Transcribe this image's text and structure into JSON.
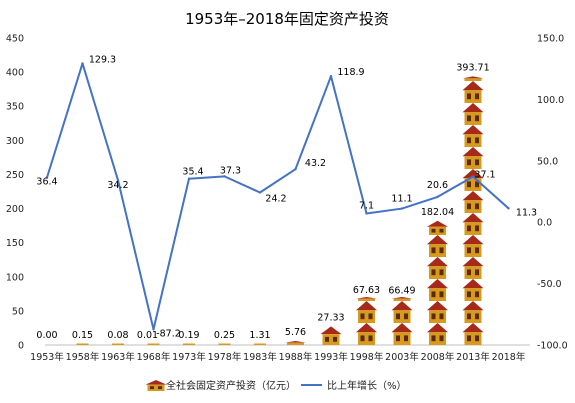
{
  "chart_data": {
    "type": "combo-pictograph-line",
    "title": "1953年–2018年固定资产投资",
    "categories": [
      "1953年",
      "1958年",
      "1963年",
      "1968年",
      "1973年",
      "1978年",
      "1983年",
      "1988年",
      "1993年",
      "1998年",
      "2003年",
      "2008年",
      "2013年",
      "2018年"
    ],
    "series": [
      {
        "name": "全社会固定资产投资（亿元）",
        "type": "pictograph",
        "axis": "left",
        "values": [
          0.0,
          0.15,
          0.08,
          0.01,
          0.19,
          0.25,
          1.31,
          5.76,
          27.33,
          67.63,
          66.49,
          182.04,
          393.71,
          null
        ],
        "labels": [
          "0.00",
          "0.15",
          "0.08",
          "0.01",
          "0.19",
          "0.25",
          "1.31",
          "5.76",
          "27.33",
          "67.63",
          "66.49",
          "182.04",
          "393.71",
          ""
        ]
      },
      {
        "name": "比上年增长（%）",
        "type": "line",
        "axis": "right",
        "color": "#4472c4",
        "values": [
          36.4,
          129.3,
          34.2,
          -87.2,
          35.4,
          37.3,
          24.2,
          43.2,
          118.9,
          7.1,
          11.1,
          20.6,
          37.1,
          11.3
        ],
        "labels": [
          "36.4",
          "129.3",
          "34.2",
          "-87.2",
          "35.4",
          "37.3",
          "24.2",
          "43.2",
          "118.9",
          "7.1",
          "11.1",
          "20.6",
          "37.1",
          "11.3"
        ]
      }
    ],
    "y_left": {
      "min": 0,
      "max": 450,
      "ticks": [
        "0",
        "50",
        "100",
        "150",
        "200",
        "250",
        "300",
        "350",
        "400",
        "450"
      ]
    },
    "y_right": {
      "min": -100,
      "max": 150,
      "ticks": [
        "-100.0",
        "-50.0",
        "0.0",
        "50.0",
        "100.0",
        "150.0"
      ]
    },
    "legend": {
      "position": "bottom"
    },
    "grid": false,
    "colors": {
      "house_roof": "#a52a1a",
      "house_wall": "#d89a1c",
      "house_window": "#5a2a0a",
      "line": "#4472c4"
    }
  }
}
